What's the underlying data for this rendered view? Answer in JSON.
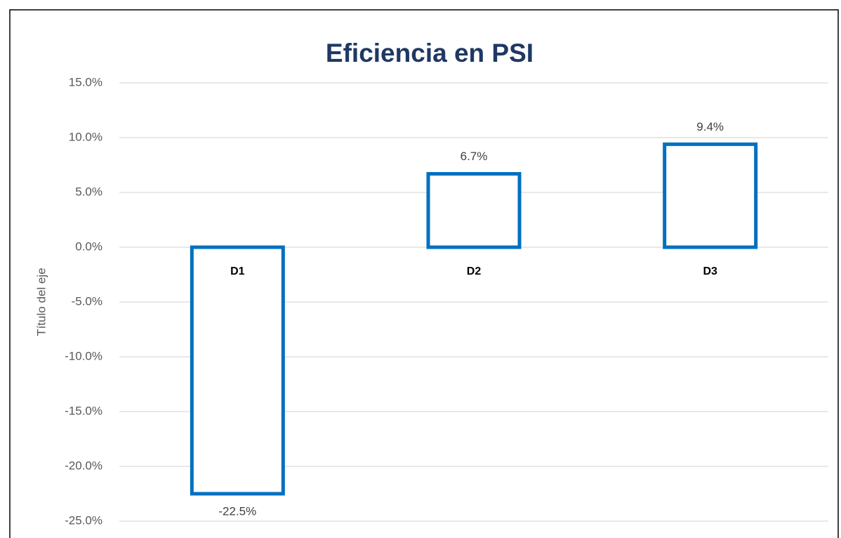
{
  "chart_data": {
    "type": "bar",
    "title": "Eficiencia en PSI",
    "y_label": "Título del eje",
    "categories": [
      "D1",
      "D2",
      "D3"
    ],
    "values": [
      -22.5,
      6.7,
      9.4
    ],
    "value_labels": [
      "-22.5%",
      "6.7%",
      "9.4%"
    ],
    "color": "#0070c0",
    "ylim": [
      -25,
      15
    ],
    "yticks": [
      {
        "value": -25,
        "label": "-25.0%"
      },
      {
        "value": -20,
        "label": "-20.0%"
      },
      {
        "value": -15,
        "label": "-15.0%"
      },
      {
        "value": -10,
        "label": "-10.0%"
      },
      {
        "value": -5,
        "label": "-5.0%"
      },
      {
        "value": 0,
        "label": "0.0%"
      },
      {
        "value": 5,
        "label": "5.0%"
      },
      {
        "value": 10,
        "label": "10.0%"
      },
      {
        "value": 15,
        "label": "15.0%"
      }
    ],
    "grid": true
  }
}
